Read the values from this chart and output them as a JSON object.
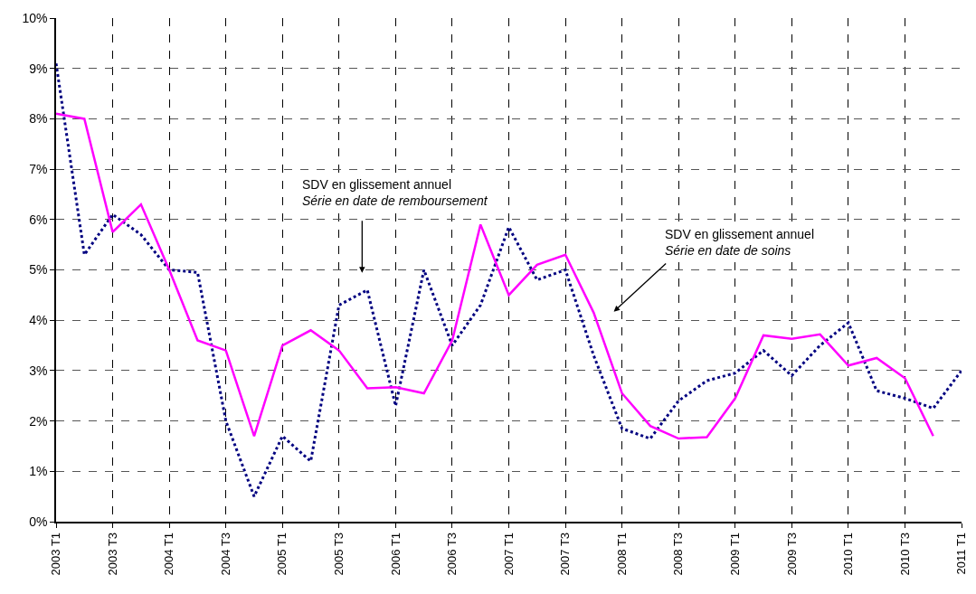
{
  "chart_data": {
    "type": "line",
    "categories": [
      "2003 T1",
      null,
      "2003 T3",
      null,
      "2004 T1",
      null,
      "2004 T3",
      null,
      "2005 T1",
      null,
      "2005 T3",
      null,
      "2006 T1",
      null,
      "2006 T3",
      null,
      "2007 T1",
      null,
      "2007 T3",
      null,
      "2008 T1",
      null,
      "2008 T3",
      null,
      "2009 T1",
      null,
      "2009 T3",
      null,
      "2010 T1",
      null,
      "2010 T3",
      null,
      "2011 T1"
    ],
    "series": [
      {
        "color": "#000080",
        "line_style": "dotted",
        "values": [
          9.1,
          5.3,
          6.1,
          5.7,
          5.0,
          4.95,
          2.0,
          0.5,
          1.7,
          1.2,
          4.3,
          4.6,
          2.3,
          5.0,
          3.5,
          4.3,
          5.85,
          4.8,
          5.0,
          3.3,
          1.85,
          1.65,
          2.4,
          2.8,
          2.95,
          3.4,
          2.9,
          3.5,
          3.95,
          2.6,
          2.45,
          2.25,
          3.0
        ]
      },
      {
        "color": "#ff00ff",
        "line_style": "solid",
        "values": [
          8.1,
          8.0,
          5.75,
          6.3,
          5.0,
          3.6,
          3.4,
          1.7,
          3.5,
          3.8,
          3.4,
          2.65,
          2.67,
          2.55,
          3.6,
          5.9,
          4.5,
          5.1,
          5.3,
          4.15,
          2.55,
          1.9,
          1.65,
          1.68,
          2.45,
          3.7,
          3.63,
          3.72,
          3.1,
          3.25,
          2.85,
          1.7,
          null
        ]
      }
    ],
    "ylim": [
      0,
      10
    ],
    "yticks": [
      {
        "value": 0,
        "label": "0%"
      },
      {
        "value": 1,
        "label": "1%"
      },
      {
        "value": 2,
        "label": "2%"
      },
      {
        "value": 3,
        "label": "3%"
      },
      {
        "value": 4,
        "label": "4%"
      },
      {
        "value": 5,
        "label": "5%"
      },
      {
        "value": 6,
        "label": "6%"
      },
      {
        "value": 7,
        "label": "7%"
      },
      {
        "value": 8,
        "label": "8%"
      },
      {
        "value": 9,
        "label": "9%"
      },
      {
        "value": 10,
        "label": "10%"
      }
    ],
    "grid": true,
    "marker": "none",
    "annotations": [
      "SDV en glissement annuel\nSérie en date de remboursement",
      "SDV en glissement annuel\nSérie en date de soins"
    ]
  }
}
